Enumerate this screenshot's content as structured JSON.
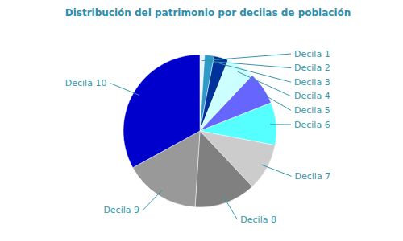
{
  "chart_data": {
    "type": "pie",
    "title": "Distribución del patrimonio por decilas de población",
    "categories": [
      "Decila 1",
      "Decila 2",
      "Decila 3",
      "Decila 4",
      "Decila 5",
      "Decila 6",
      "Decila 7",
      "Decila 8",
      "Decila 9",
      "Decila 10"
    ],
    "values": [
      1,
      2,
      3,
      6,
      7,
      9,
      10,
      13,
      16,
      33
    ],
    "colors": [
      "#E8F4FF",
      "#2E9AC8",
      "#003399",
      "#CCFFFF",
      "#6666FF",
      "#55FFFF",
      "#CCCCCC",
      "#808080",
      "#999999",
      "#0000CC"
    ]
  }
}
